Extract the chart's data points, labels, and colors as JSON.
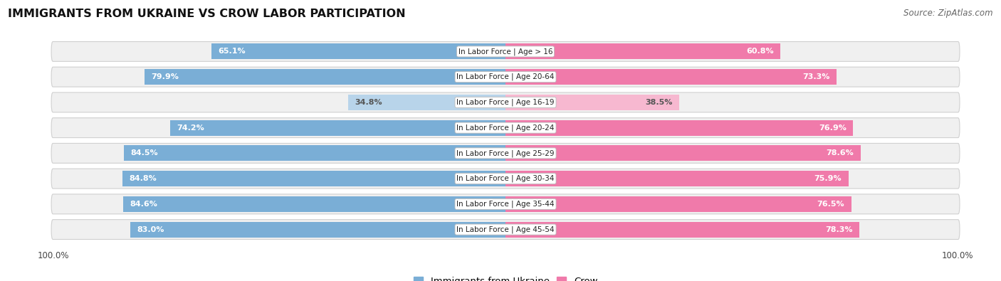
{
  "title": "IMMIGRANTS FROM UKRAINE VS CROW LABOR PARTICIPATION",
  "source": "Source: ZipAtlas.com",
  "categories": [
    "In Labor Force | Age > 16",
    "In Labor Force | Age 20-64",
    "In Labor Force | Age 16-19",
    "In Labor Force | Age 20-24",
    "In Labor Force | Age 25-29",
    "In Labor Force | Age 30-34",
    "In Labor Force | Age 35-44",
    "In Labor Force | Age 45-54"
  ],
  "ukraine_values": [
    65.1,
    79.9,
    34.8,
    74.2,
    84.5,
    84.8,
    84.6,
    83.0
  ],
  "crow_values": [
    60.8,
    73.3,
    38.5,
    76.9,
    78.6,
    75.9,
    76.5,
    78.3
  ],
  "ukraine_color": "#7aaed6",
  "ukraine_color_light": "#b8d4ea",
  "crow_color": "#f07aaa",
  "crow_color_light": "#f7b8d0",
  "row_bg_color": "#f0f0f0",
  "row_bg_color_alt": "#e8e8e8",
  "max_value": 100.0,
  "bar_height": 0.62,
  "value_fontsize": 8.0,
  "cat_fontsize": 7.5,
  "title_fontsize": 11.5,
  "legend_fontsize": 9.5,
  "source_fontsize": 8.5
}
